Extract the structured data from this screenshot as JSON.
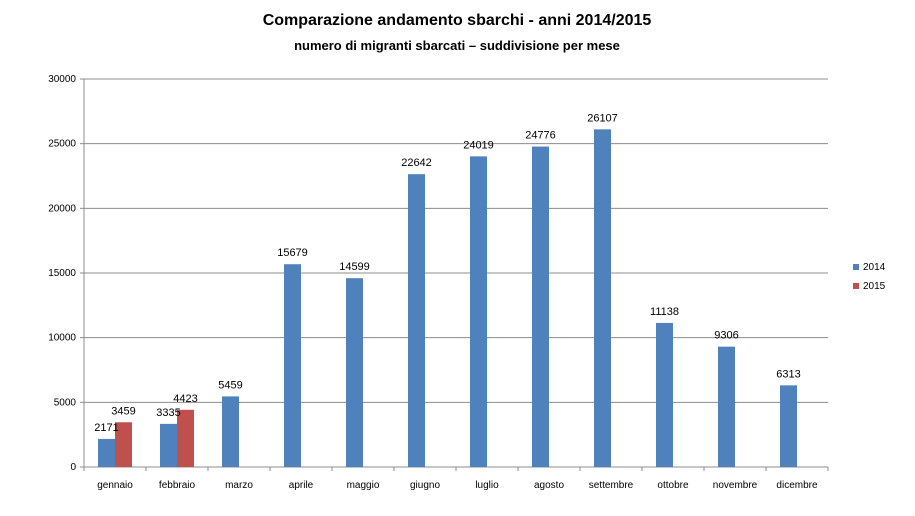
{
  "chart_data": {
    "type": "bar",
    "title": "Comparazione andamento sbarchi - anni 2014/2015",
    "subtitle": "numero di migranti sbarcati – suddivisione per mese",
    "categories": [
      "gennaio",
      "febbraio",
      "marzo",
      "aprile",
      "maggio",
      "giugno",
      "luglio",
      "agosto",
      "settembre",
      "ottobre",
      "novembre",
      "dicembre"
    ],
    "series": [
      {
        "name": "2014",
        "color": "#4f81bd",
        "values": [
          2171,
          3335,
          5459,
          15679,
          14599,
          22642,
          24019,
          24776,
          26107,
          11138,
          9306,
          6313
        ]
      },
      {
        "name": "2015",
        "color": "#c0504d",
        "values": [
          3459,
          4423,
          null,
          null,
          null,
          null,
          null,
          null,
          null,
          null,
          null,
          null
        ]
      }
    ],
    "ylim": [
      0,
      30000
    ],
    "yticks": [
      0,
      5000,
      10000,
      15000,
      20000,
      25000,
      30000
    ],
    "grid": true,
    "legend_position": "right",
    "xlabel": "",
    "ylabel": ""
  }
}
